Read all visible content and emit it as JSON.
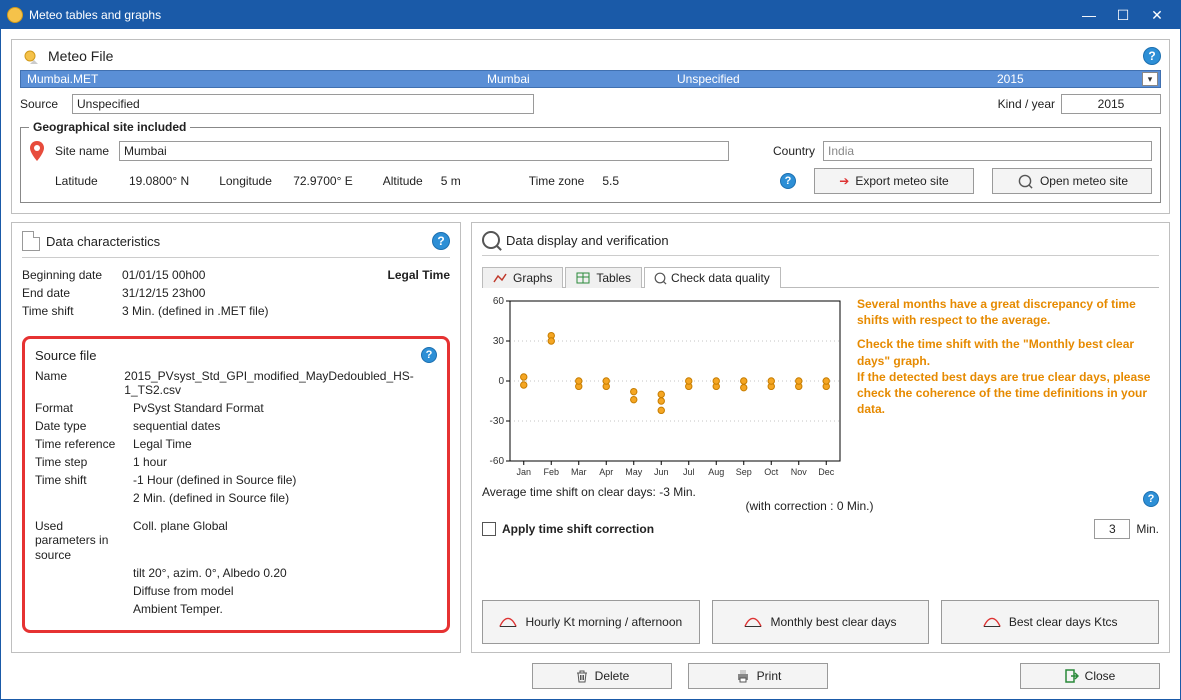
{
  "window": {
    "title": "Meteo tables and graphs"
  },
  "top": {
    "heading": "Meteo File",
    "file_selector": {
      "filename": "Mumbai.MET",
      "location": "Mumbai",
      "status": "Unspecified",
      "year": "2015"
    },
    "source_label": "Source",
    "source_value": "Unspecified",
    "kind_label": "Kind / year",
    "kind_value": "2015"
  },
  "geo": {
    "legend": "Geographical site included",
    "site_name_label": "Site name",
    "site_name_value": "Mumbai",
    "country_label": "Country",
    "country_value": "India",
    "lat_label": "Latitude",
    "lat_value": "19.0800° N",
    "lon_label": "Longitude",
    "lon_value": "72.9700° E",
    "alt_label": "Altitude",
    "alt_value": "5 m",
    "tz_label": "Time zone",
    "tz_value": "5.5",
    "export_btn": "Export meteo site",
    "open_btn": "Open meteo site"
  },
  "data_char": {
    "heading": "Data characteristics",
    "beg_label": "Beginning date",
    "beg_value": "01/01/15 00h00",
    "end_label": "End date",
    "end_value": "31/12/15 23h00",
    "ts_label": "Time shift",
    "ts_value": "3 Min. (defined in .MET file)",
    "legal": "Legal Time"
  },
  "source_file": {
    "heading": "Source file",
    "name_k": "Name",
    "name_v": "2015_PVsyst_Std_GPI_modified_MayDedoubled_HS-1_TS2.csv",
    "fmt_k": "Format",
    "fmt_v": "PvSyst Standard Format",
    "dt_k": "Date type",
    "dt_v": "sequential dates",
    "tr_k": "Time reference",
    "tr_v": "Legal Time",
    "tstep_k": "Time step",
    "tstep_v": "1 hour",
    "tsh_k": "Time shift",
    "tsh_v1": "-1 Hour (defined in Source file)",
    "tsh_v2": "2 Min. (defined in Source file)",
    "used_k": "Used parameters in source",
    "used_v1": "Coll. plane Global",
    "used_v2": "tilt 20°, azim. 0°, Albedo 0.20",
    "used_v3": "Diffuse from model",
    "used_v4": "Ambient Temper."
  },
  "right": {
    "heading": "Data display and verification",
    "tab_graphs": "Graphs",
    "tab_tables": "Tables",
    "tab_quality": "Check data quality",
    "avg_text": "Average time shift on clear days: -3 Min.",
    "avg_corr": "(with correction : 0 Min.)",
    "apply_chk": "Apply time shift correction",
    "apply_val": "3",
    "apply_unit": "Min.",
    "warn1": "Several months have a great discrepancy of time shifts with respect to the average.",
    "warn2": "Check the time shift with the \"Monthly best clear days\" graph.",
    "warn3": "If the detected best days are true clear days, please check the coherence of the time definitions in your data.",
    "btn1": "Hourly Kt morning / afternoon",
    "btn2": "Monthly best clear days",
    "btn3": "Best clear days Ktcs",
    "chart": {
      "type": "scatter",
      "ylim": [
        -60,
        60
      ],
      "yticks": [
        -60,
        -30,
        0,
        30,
        60
      ],
      "x_categories": [
        "Jan",
        "Feb",
        "Mar",
        "Apr",
        "May",
        "Jun",
        "Jul",
        "Aug",
        "Sep",
        "Oct",
        "Nov",
        "Dec"
      ],
      "marker_color": "#f5a623",
      "marker_border": "#c77d00",
      "grid_color": "#888",
      "axis_color": "#000",
      "points": {
        "Jan": [
          3,
          -3
        ],
        "Feb": [
          34,
          30
        ],
        "Mar": [
          -4,
          0
        ],
        "Apr": [
          -4,
          0
        ],
        "May": [
          -14,
          -8
        ],
        "Jun": [
          -22,
          -15,
          -10
        ],
        "Jul": [
          -4,
          0
        ],
        "Aug": [
          -4,
          0
        ],
        "Sep": [
          -5,
          0
        ],
        "Oct": [
          -4,
          0
        ],
        "Nov": [
          -4,
          0
        ],
        "Dec": [
          -4,
          0
        ]
      }
    }
  },
  "footer": {
    "delete": "Delete",
    "print": "Print",
    "close": "Close"
  }
}
